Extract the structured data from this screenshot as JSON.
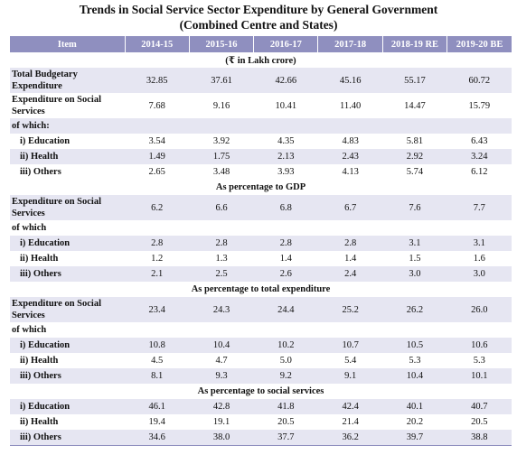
{
  "title": {
    "line1": "Trends in Social Service Sector Expenditure by General Government",
    "line2": "(Combined Centre and States)"
  },
  "headers": [
    "Item",
    "2014-15",
    "2015-16",
    "2016-17",
    "2017-18",
    "2018-19 RE",
    "2019-20 BE"
  ],
  "units": {
    "lakh": "(₹ in Lakh crore)",
    "gdp": "As percentage to GDP",
    "total": "As percentage to total expenditure",
    "social": "As percentage to social services"
  },
  "lakh": {
    "total_budgetary": {
      "label": "Total Budgetary Expenditure",
      "values": [
        "32.85",
        "37.61",
        "42.66",
        "45.16",
        "55.17",
        "60.72"
      ]
    },
    "social_services": {
      "label": "Expenditure on Social Services",
      "values": [
        "7.68",
        "9.16",
        "10.41",
        "11.40",
        "14.47",
        "15.79"
      ]
    },
    "of_which": "of which:",
    "education": {
      "label": "i)  Education",
      "values": [
        "3.54",
        "3.92",
        "4.35",
        "4.83",
        "5.81",
        "6.43"
      ]
    },
    "health": {
      "label": "ii)  Health",
      "values": [
        "1.49",
        "1.75",
        "2.13",
        "2.43",
        "2.92",
        "3.24"
      ]
    },
    "others": {
      "label": "iii)  Others",
      "values": [
        "2.65",
        "3.48",
        "3.93",
        "4.13",
        "5.74",
        "6.12"
      ]
    }
  },
  "gdp": {
    "social_services": {
      "label": "Expenditure on Social Services",
      "values": [
        "6.2",
        "6.6",
        "6.8",
        "6.7",
        "7.6",
        "7.7"
      ]
    },
    "of_which": "of which",
    "education": {
      "label": "i)  Education",
      "values": [
        "2.8",
        "2.8",
        "2.8",
        "2.8",
        "3.1",
        "3.1"
      ]
    },
    "health": {
      "label": "ii)  Health",
      "values": [
        "1.2",
        "1.3",
        "1.4",
        "1.4",
        "1.5",
        "1.6"
      ]
    },
    "others": {
      "label": "iii)  Others",
      "values": [
        "2.1",
        "2.5",
        "2.6",
        "2.4",
        "3.0",
        "3.0"
      ]
    }
  },
  "total": {
    "social_services": {
      "label": "Expenditure on Social Services",
      "values": [
        "23.4",
        "24.3",
        "24.4",
        "25.2",
        "26.2",
        "26.0"
      ]
    },
    "of_which": "of which",
    "education": {
      "label": "i)  Education",
      "values": [
        "10.8",
        "10.4",
        "10.2",
        "10.7",
        "10.5",
        "10.6"
      ]
    },
    "health": {
      "label": "ii)  Health",
      "values": [
        "4.5",
        "4.7",
        "5.0",
        "5.4",
        "5.3",
        "5.3"
      ]
    },
    "others": {
      "label": "iii)  Others",
      "values": [
        "8.1",
        "9.3",
        "9.2",
        "9.1",
        "10.4",
        "10.1"
      ]
    }
  },
  "social": {
    "education": {
      "label": "i)  Education",
      "values": [
        "46.1",
        "42.8",
        "41.8",
        "42.4",
        "40.1",
        "40.7"
      ]
    },
    "health": {
      "label": "ii)  Health",
      "values": [
        "19.4",
        "19.1",
        "20.5",
        "21.4",
        "20.2",
        "20.5"
      ]
    },
    "others": {
      "label": "iii)  Others",
      "values": [
        "34.6",
        "38.0",
        "37.7",
        "36.2",
        "39.7",
        "38.8"
      ]
    }
  },
  "colors": {
    "header_bg": "#8f8fbf",
    "band_bg": "#e6e6f2"
  }
}
